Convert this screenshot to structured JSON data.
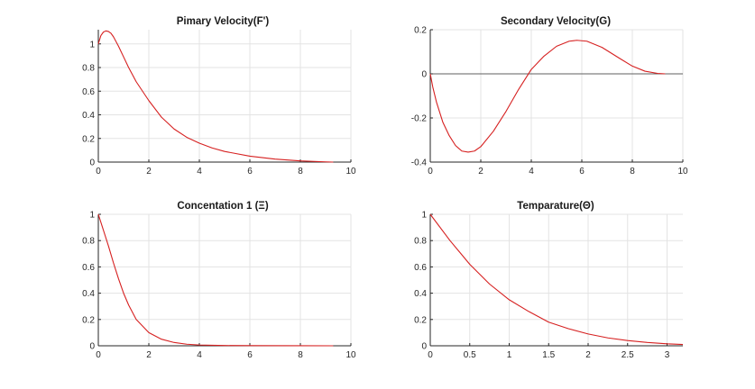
{
  "chart_data": [
    {
      "type": "line",
      "title": "Pimary Velocity(F')",
      "xlim": [
        0,
        10
      ],
      "ylim": [
        0,
        1.12
      ],
      "xticks": [
        0,
        2,
        4,
        6,
        8,
        10
      ],
      "xtick_labels": [
        "0",
        "2",
        "4",
        "6",
        "8",
        "10"
      ],
      "yticks": [
        0,
        0.2,
        0.4,
        0.6,
        0.8,
        1
      ],
      "ytick_labels": [
        "0",
        "0.2",
        "0.4",
        "0.6",
        "0.8",
        "1"
      ],
      "grid": true,
      "series": [
        {
          "color": "#d62020",
          "x": [
            0,
            0.1,
            0.2,
            0.3,
            0.4,
            0.5,
            0.6,
            0.8,
            1.0,
            1.2,
            1.5,
            2.0,
            2.5,
            3.0,
            3.5,
            4.0,
            4.5,
            5.0,
            6.0,
            7.0,
            8.0,
            9.0,
            9.3
          ],
          "y": [
            1.0,
            1.07,
            1.1,
            1.11,
            1.105,
            1.09,
            1.06,
            0.98,
            0.89,
            0.8,
            0.68,
            0.52,
            0.38,
            0.28,
            0.21,
            0.16,
            0.12,
            0.09,
            0.05,
            0.025,
            0.01,
            0.002,
            0
          ]
        }
      ]
    },
    {
      "type": "line",
      "title": "Secondary Velocity(G)",
      "xlim": [
        0,
        10
      ],
      "ylim": [
        -0.4,
        0.2
      ],
      "xticks": [
        0,
        2,
        4,
        6,
        8,
        10
      ],
      "xtick_labels": [
        "0",
        "2",
        "4",
        "6",
        "8",
        "10"
      ],
      "yticks": [
        -0.4,
        -0.2,
        0,
        0.2
      ],
      "ytick_labels": [
        "-0.4",
        "-0.2",
        "0",
        "0.2"
      ],
      "grid": true,
      "hline": 0,
      "series": [
        {
          "color": "#d62020",
          "x": [
            0,
            0.1,
            0.25,
            0.5,
            0.75,
            1.0,
            1.25,
            1.5,
            1.75,
            2.0,
            2.5,
            3.0,
            3.5,
            4.0,
            4.5,
            5.0,
            5.5,
            5.8,
            6.2,
            6.8,
            7.5,
            8.0,
            8.5,
            9.0,
            9.3
          ],
          "y": [
            0,
            -0.06,
            -0.13,
            -0.22,
            -0.28,
            -0.325,
            -0.35,
            -0.355,
            -0.35,
            -0.33,
            -0.26,
            -0.17,
            -0.07,
            0.02,
            0.08,
            0.125,
            0.148,
            0.152,
            0.148,
            0.12,
            0.07,
            0.035,
            0.012,
            0.002,
            0
          ]
        }
      ]
    },
    {
      "type": "line",
      "title": "Concentation 1 (Ξ)",
      "xlim": [
        0,
        10
      ],
      "ylim": [
        0,
        1
      ],
      "xticks": [
        0,
        2,
        4,
        6,
        8,
        10
      ],
      "xtick_labels": [
        "0",
        "2",
        "4",
        "6",
        "8",
        "10"
      ],
      "yticks": [
        0,
        0.2,
        0.4,
        0.6,
        0.8,
        1
      ],
      "ytick_labels": [
        "0",
        "0.2",
        "0.4",
        "0.6",
        "0.8",
        "1"
      ],
      "grid": true,
      "series": [
        {
          "color": "#d62020",
          "x": [
            0,
            0.2,
            0.4,
            0.6,
            0.8,
            1.0,
            1.2,
            1.5,
            2.0,
            2.5,
            3.0,
            3.5,
            4.0,
            5.0,
            6.0,
            8.0,
            9.3
          ],
          "y": [
            1.0,
            0.88,
            0.76,
            0.63,
            0.51,
            0.4,
            0.31,
            0.2,
            0.1,
            0.05,
            0.025,
            0.012,
            0.006,
            0.002,
            0.001,
            0.0005,
            0
          ]
        }
      ]
    },
    {
      "type": "line",
      "title": "Temparature(Θ)",
      "xlim": [
        0,
        3.2
      ],
      "ylim": [
        0,
        1
      ],
      "xticks": [
        0,
        0.5,
        1,
        1.5,
        2,
        2.5,
        3
      ],
      "xtick_labels": [
        "0",
        "0.5",
        "1",
        "1.5",
        "2",
        "2.5",
        "3"
      ],
      "yticks": [
        0,
        0.2,
        0.4,
        0.6,
        0.8,
        1
      ],
      "ytick_labels": [
        "0",
        "0.2",
        "0.4",
        "0.6",
        "0.8",
        "1"
      ],
      "grid": true,
      "series": [
        {
          "color": "#d62020",
          "x": [
            0,
            0.25,
            0.5,
            0.75,
            1.0,
            1.25,
            1.5,
            1.75,
            2.0,
            2.25,
            2.5,
            2.75,
            3.0,
            3.2
          ],
          "y": [
            1.0,
            0.8,
            0.62,
            0.47,
            0.35,
            0.26,
            0.18,
            0.13,
            0.09,
            0.06,
            0.04,
            0.025,
            0.015,
            0.01
          ]
        }
      ]
    }
  ]
}
